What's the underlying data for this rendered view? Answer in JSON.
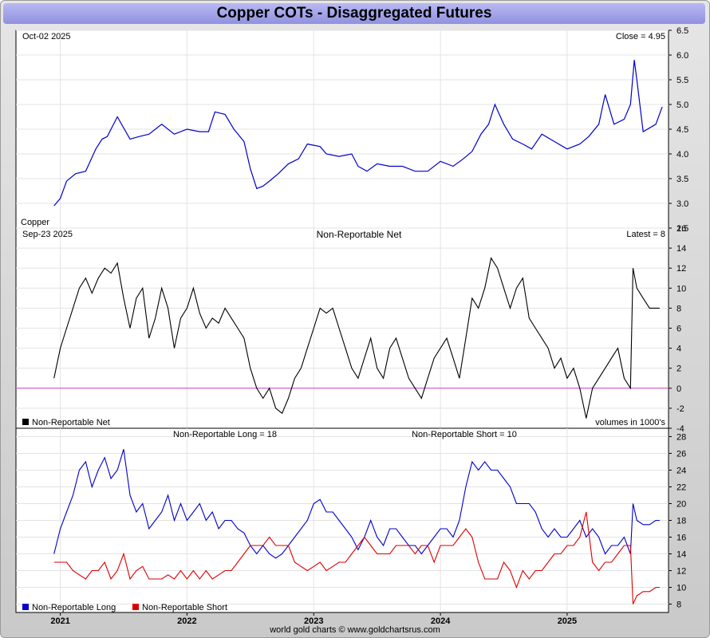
{
  "page": {
    "title": "Copper COTs - Disaggregated Futures",
    "footer": "world gold charts © www.goldchartsrus.com"
  },
  "colors": {
    "price": "#0000cc",
    "net": "#000000",
    "zero_line": "#cc44cc",
    "long": "#0000cc",
    "short": "#dd0000"
  },
  "chart_data": [
    {
      "type": "line",
      "name": "price",
      "date_label": "Oct-02  2025",
      "value_label": "Close = 4.95",
      "series_label": "Copper",
      "ylim": [
        2.5,
        6.5
      ],
      "yticks": [
        "2.5",
        "3.0",
        "3.5",
        "4.0",
        "4.5",
        "5.0",
        "5.5",
        "6.0",
        "6.5"
      ],
      "x": [
        2020.95,
        2021.0,
        2021.05,
        2021.12,
        2021.2,
        2021.28,
        2021.33,
        2021.37,
        2021.45,
        2021.55,
        2021.62,
        2021.7,
        2021.8,
        2021.9,
        2022.0,
        2022.1,
        2022.17,
        2022.22,
        2022.3,
        2022.37,
        2022.45,
        2022.5,
        2022.55,
        2022.6,
        2022.65,
        2022.72,
        2022.8,
        2022.88,
        2022.95,
        2023.05,
        2023.1,
        2023.2,
        2023.3,
        2023.35,
        2023.42,
        2023.5,
        2023.6,
        2023.7,
        2023.8,
        2023.9,
        2024.0,
        2024.1,
        2024.18,
        2024.25,
        2024.32,
        2024.38,
        2024.43,
        2024.5,
        2024.57,
        2024.65,
        2024.72,
        2024.8,
        2024.9,
        2025.0,
        2025.1,
        2025.17,
        2025.25,
        2025.3,
        2025.37,
        2025.45,
        2025.5,
        2025.53,
        2025.55,
        2025.6,
        2025.7,
        2025.75
      ],
      "values": [
        2.95,
        3.1,
        3.45,
        3.6,
        3.65,
        4.1,
        4.3,
        4.35,
        4.75,
        4.3,
        4.35,
        4.4,
        4.6,
        4.4,
        4.5,
        4.45,
        4.45,
        4.85,
        4.8,
        4.5,
        4.25,
        3.7,
        3.3,
        3.35,
        3.45,
        3.6,
        3.8,
        3.9,
        4.2,
        4.15,
        4.0,
        3.95,
        4.0,
        3.75,
        3.65,
        3.8,
        3.75,
        3.75,
        3.65,
        3.65,
        3.85,
        3.75,
        3.9,
        4.05,
        4.4,
        4.6,
        5.0,
        4.6,
        4.3,
        4.2,
        4.1,
        4.4,
        4.25,
        4.1,
        4.2,
        4.35,
        4.6,
        5.2,
        4.6,
        4.7,
        5.0,
        5.9,
        5.5,
        4.45,
        4.6,
        4.95
      ]
    },
    {
      "type": "line",
      "name": "net",
      "title": "Non-Reportable Net",
      "date_label": "Sep-23  2025",
      "value_label": "Latest = 8",
      "legend": [
        "Non-Reportable Net"
      ],
      "note": "volumes in 1000's",
      "ylim": [
        -4,
        16
      ],
      "yticks": [
        "-4",
        "-2",
        "0",
        "2",
        "4",
        "6",
        "8",
        "10",
        "12",
        "14",
        "16"
      ],
      "x": [
        2020.95,
        2021.0,
        2021.05,
        2021.1,
        2021.15,
        2021.2,
        2021.25,
        2021.3,
        2021.35,
        2021.4,
        2021.45,
        2021.5,
        2021.55,
        2021.6,
        2021.65,
        2021.7,
        2021.75,
        2021.8,
        2021.85,
        2021.9,
        2021.95,
        2022.0,
        2022.05,
        2022.1,
        2022.15,
        2022.2,
        2022.25,
        2022.3,
        2022.35,
        2022.4,
        2022.45,
        2022.5,
        2022.55,
        2022.6,
        2022.65,
        2022.7,
        2022.75,
        2022.8,
        2022.85,
        2022.9,
        2022.95,
        2023.0,
        2023.05,
        2023.1,
        2023.15,
        2023.2,
        2023.25,
        2023.3,
        2023.35,
        2023.4,
        2023.45,
        2023.5,
        2023.55,
        2023.6,
        2023.65,
        2023.7,
        2023.75,
        2023.8,
        2023.85,
        2023.9,
        2023.95,
        2024.0,
        2024.05,
        2024.1,
        2024.15,
        2024.2,
        2024.25,
        2024.3,
        2024.35,
        2024.4,
        2024.45,
        2024.5,
        2024.55,
        2024.6,
        2024.65,
        2024.7,
        2024.75,
        2024.8,
        2024.85,
        2024.9,
        2024.95,
        2025.0,
        2025.05,
        2025.1,
        2025.15,
        2025.2,
        2025.25,
        2025.3,
        2025.35,
        2025.4,
        2025.45,
        2025.5,
        2025.52,
        2025.55,
        2025.6,
        2025.65,
        2025.7,
        2025.73
      ],
      "values": [
        1,
        4,
        6,
        8,
        10,
        11,
        9.5,
        11,
        12,
        11.5,
        12.5,
        9,
        6,
        9,
        10,
        5,
        7,
        10,
        8,
        4,
        7,
        8,
        10,
        7.5,
        6,
        7,
        6.5,
        8,
        7,
        6,
        5,
        2,
        0,
        -1,
        0,
        -2,
        -2.5,
        -1,
        1,
        2,
        4,
        6,
        8,
        7.5,
        8,
        6,
        4,
        2,
        1,
        3,
        5,
        2,
        1,
        4,
        5,
        3,
        1,
        0,
        -1,
        1,
        3,
        4,
        5,
        3,
        1,
        5,
        9,
        8,
        10,
        13,
        12,
        10,
        8,
        10,
        11,
        7,
        6,
        5,
        4,
        2,
        3,
        1,
        2,
        0,
        -3,
        0,
        1,
        2,
        3,
        4,
        1,
        0,
        12,
        10,
        9,
        8,
        8,
        8
      ]
    },
    {
      "type": "line",
      "name": "long-short",
      "long_title": "Non-Reportable Long = 18",
      "short_title": "Non-Reportable Short = 10",
      "legend": [
        "Non-Reportable Long",
        "Non-Reportable Short"
      ],
      "ylim": [
        7,
        29
      ],
      "yticks": [
        "8",
        "10",
        "12",
        "14",
        "16",
        "18",
        "20",
        "22",
        "24",
        "26",
        "28"
      ],
      "xticks": [
        "2021",
        "2022",
        "2023",
        "2024",
        "2025"
      ],
      "xtick_values": [
        2021.0,
        2022.0,
        2023.0,
        2024.0,
        2025.0
      ],
      "xlim": [
        2020.65,
        2025.8
      ],
      "series": [
        {
          "name": "Non-Reportable Long",
          "x": [
            2020.95,
            2021.0,
            2021.05,
            2021.1,
            2021.15,
            2021.2,
            2021.25,
            2021.3,
            2021.35,
            2021.4,
            2021.45,
            2021.5,
            2021.55,
            2021.6,
            2021.65,
            2021.7,
            2021.75,
            2021.8,
            2021.85,
            2021.9,
            2021.95,
            2022.0,
            2022.05,
            2022.1,
            2022.15,
            2022.2,
            2022.25,
            2022.3,
            2022.35,
            2022.4,
            2022.45,
            2022.5,
            2022.55,
            2022.6,
            2022.65,
            2022.7,
            2022.75,
            2022.8,
            2022.85,
            2022.9,
            2022.95,
            2023.0,
            2023.05,
            2023.1,
            2023.15,
            2023.2,
            2023.25,
            2023.3,
            2023.35,
            2023.4,
            2023.45,
            2023.5,
            2023.55,
            2023.6,
            2023.65,
            2023.7,
            2023.75,
            2023.8,
            2023.85,
            2023.9,
            2023.95,
            2024.0,
            2024.05,
            2024.1,
            2024.15,
            2024.2,
            2024.25,
            2024.3,
            2024.35,
            2024.4,
            2024.45,
            2024.5,
            2024.55,
            2024.6,
            2024.65,
            2024.7,
            2024.75,
            2024.8,
            2024.85,
            2024.9,
            2024.95,
            2025.0,
            2025.05,
            2025.1,
            2025.15,
            2025.2,
            2025.25,
            2025.3,
            2025.35,
            2025.4,
            2025.45,
            2025.5,
            2025.52,
            2025.55,
            2025.6,
            2025.65,
            2025.7,
            2025.73
          ],
          "values": [
            14,
            17,
            19,
            21,
            24,
            25,
            22,
            24,
            25.5,
            23,
            24,
            26.5,
            21,
            19,
            20,
            17,
            18,
            19,
            21,
            18,
            20,
            18,
            19,
            20,
            18,
            19,
            17,
            18,
            18,
            17,
            16.5,
            15,
            14,
            15,
            14,
            13.5,
            14,
            15,
            16,
            17,
            18,
            20,
            20.5,
            19,
            19,
            18,
            17,
            16,
            14.5,
            16,
            18,
            16,
            15,
            17,
            17,
            16,
            15,
            15,
            14,
            15,
            16,
            17,
            17,
            16,
            18,
            22,
            25,
            24,
            25,
            24,
            24,
            23,
            22,
            20,
            20,
            20,
            19,
            17,
            16,
            17,
            16,
            16,
            17,
            18,
            16,
            17,
            16,
            14,
            15,
            15,
            16,
            14,
            20,
            18,
            17.5,
            17.5,
            18,
            18
          ]
        },
        {
          "name": "Non-Reportable Short",
          "x": [
            2020.95,
            2021.0,
            2021.05,
            2021.1,
            2021.15,
            2021.2,
            2021.25,
            2021.3,
            2021.35,
            2021.4,
            2021.45,
            2021.5,
            2021.55,
            2021.6,
            2021.65,
            2021.7,
            2021.75,
            2021.8,
            2021.85,
            2021.9,
            2021.95,
            2022.0,
            2022.05,
            2022.1,
            2022.15,
            2022.2,
            2022.25,
            2022.3,
            2022.35,
            2022.4,
            2022.45,
            2022.5,
            2022.55,
            2022.6,
            2022.65,
            2022.7,
            2022.75,
            2022.8,
            2022.85,
            2022.9,
            2022.95,
            2023.0,
            2023.05,
            2023.1,
            2023.15,
            2023.2,
            2023.25,
            2023.3,
            2023.35,
            2023.4,
            2023.45,
            2023.5,
            2023.55,
            2023.6,
            2023.65,
            2023.7,
            2023.75,
            2023.8,
            2023.85,
            2023.9,
            2023.95,
            2024.0,
            2024.05,
            2024.1,
            2024.15,
            2024.2,
            2024.25,
            2024.3,
            2024.35,
            2024.4,
            2024.45,
            2024.5,
            2024.55,
            2024.6,
            2024.65,
            2024.7,
            2024.75,
            2024.8,
            2024.85,
            2024.9,
            2024.95,
            2025.0,
            2025.05,
            2025.1,
            2025.15,
            2025.2,
            2025.25,
            2025.3,
            2025.35,
            2025.4,
            2025.45,
            2025.5,
            2025.52,
            2025.55,
            2025.6,
            2025.65,
            2025.7,
            2025.73
          ],
          "values": [
            13,
            13,
            13,
            12,
            11.5,
            11,
            12,
            12,
            13,
            11,
            12,
            14,
            11,
            12,
            12.5,
            11,
            11,
            11,
            11.5,
            11,
            12,
            11,
            12,
            11,
            12,
            11,
            11.5,
            12,
            12,
            13,
            14,
            15,
            15,
            15,
            16,
            15,
            15,
            15,
            13,
            12.5,
            12,
            12.5,
            13,
            12,
            12.5,
            13,
            13,
            14,
            15,
            16,
            15,
            14,
            14,
            14,
            15,
            15,
            15,
            14,
            15,
            15,
            13,
            15,
            15,
            15,
            16,
            17,
            16,
            13,
            11,
            11,
            11,
            13,
            12,
            10,
            12,
            11,
            12,
            12,
            13,
            14,
            14,
            15,
            15,
            16,
            19,
            13,
            12,
            13,
            13,
            14,
            15,
            15,
            8,
            9,
            9.5,
            9.5,
            10,
            10
          ]
        }
      ]
    }
  ]
}
